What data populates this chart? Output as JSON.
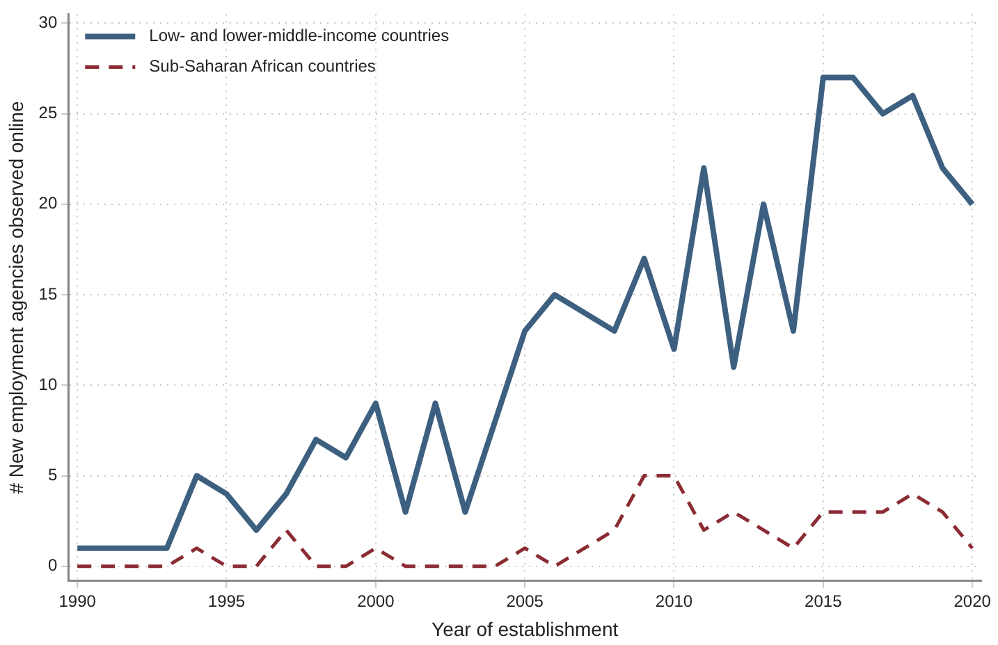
{
  "chart_data": {
    "type": "line",
    "xlabel": "Year of establishment",
    "ylabel": "# New employment agencies observed online",
    "x": [
      1990,
      1991,
      1992,
      1993,
      1994,
      1995,
      1996,
      1997,
      1998,
      1999,
      2000,
      2001,
      2002,
      2003,
      2004,
      2005,
      2006,
      2007,
      2008,
      2009,
      2010,
      2011,
      2012,
      2013,
      2014,
      2015,
      2016,
      2017,
      2018,
      2019,
      2020
    ],
    "series": [
      {
        "name": "Low- and lower-middle-income countries",
        "color": "#3d6080",
        "line_style": "solid",
        "values": [
          1,
          1,
          1,
          1,
          5,
          4,
          2,
          4,
          7,
          6,
          9,
          3,
          9,
          3,
          8,
          13,
          15,
          14,
          13,
          17,
          12,
          22,
          11,
          20,
          13,
          27,
          27,
          25,
          26,
          22,
          20
        ]
      },
      {
        "name": "Sub-Saharan African countries",
        "color": "#8b2c35",
        "line_style": "dashed",
        "values": [
          0,
          0,
          0,
          0,
          1,
          0,
          0,
          2,
          0,
          0,
          1,
          0,
          0,
          0,
          0,
          1,
          0,
          1,
          2,
          5,
          5,
          2,
          3,
          2,
          1,
          3,
          3,
          3,
          4,
          3,
          1
        ]
      }
    ],
    "xlim": [
      1989.7,
      2020.3
    ],
    "xticks": [
      1990,
      1995,
      2000,
      2005,
      2010,
      2015,
      2020
    ],
    "ylim": [
      -0.8,
      30.5
    ],
    "yticks": [
      0,
      5,
      10,
      15,
      20,
      25,
      30
    ],
    "grid": true,
    "legend": "top left",
    "marker": "none"
  }
}
